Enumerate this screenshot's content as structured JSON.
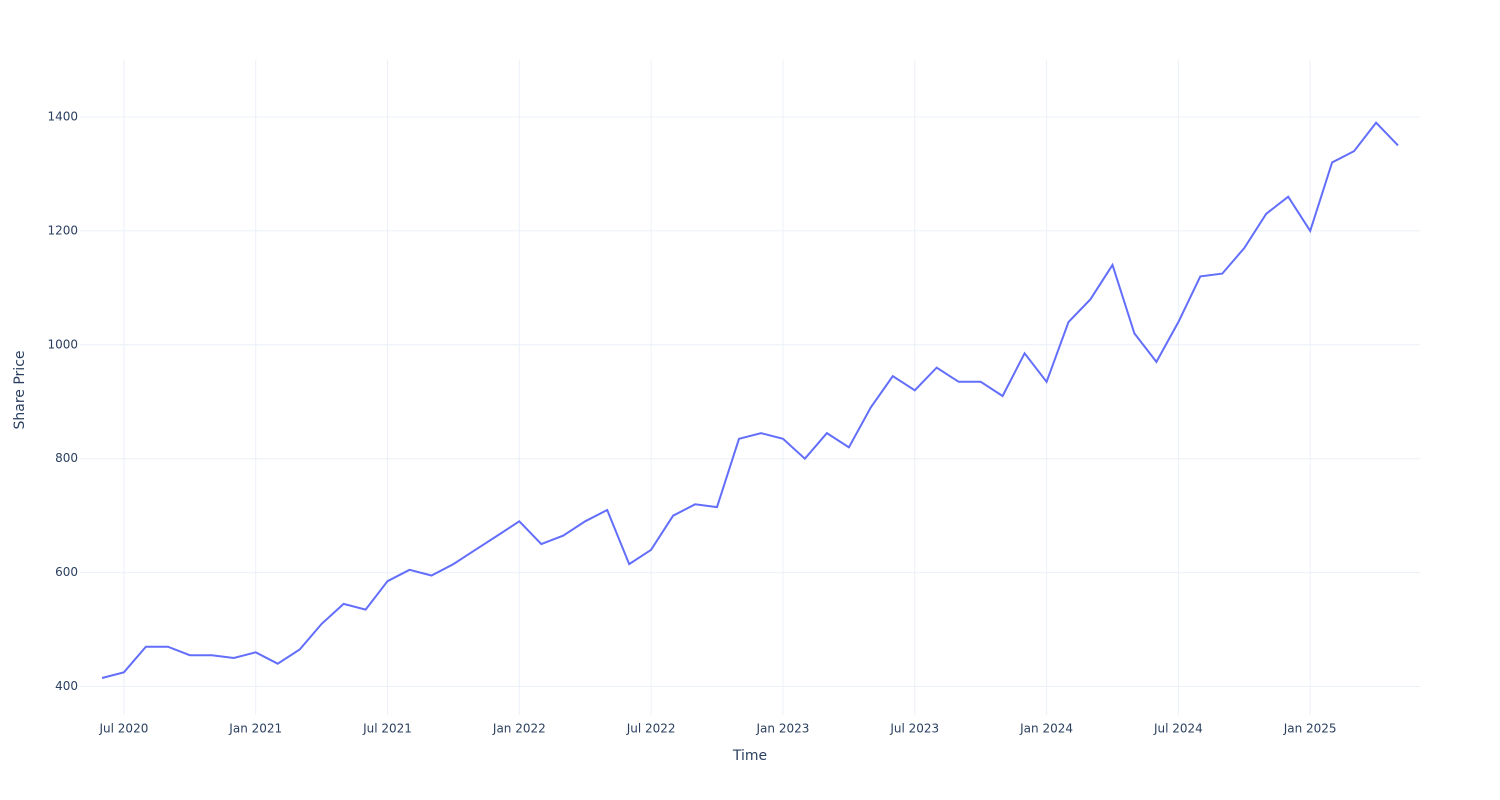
{
  "chart_data": {
    "type": "line",
    "x_label": "Time",
    "y_label": "Share Price",
    "x": [
      "2020-06",
      "2020-07",
      "2020-08",
      "2020-09",
      "2020-10",
      "2020-11",
      "2020-12",
      "2021-01",
      "2021-02",
      "2021-03",
      "2021-04",
      "2021-05",
      "2021-06",
      "2021-07",
      "2021-08",
      "2021-09",
      "2021-10",
      "2021-11",
      "2021-12",
      "2022-01",
      "2022-02",
      "2022-03",
      "2022-04",
      "2022-05",
      "2022-06",
      "2022-07",
      "2022-08",
      "2022-09",
      "2022-10",
      "2022-11",
      "2022-12",
      "2023-01",
      "2023-02",
      "2023-03",
      "2023-04",
      "2023-05",
      "2023-06",
      "2023-07",
      "2023-08",
      "2023-09",
      "2023-10",
      "2023-11",
      "2023-12",
      "2024-01",
      "2024-02",
      "2024-03",
      "2024-04",
      "2024-05",
      "2024-06",
      "2024-07",
      "2024-08",
      "2024-09",
      "2024-10",
      "2024-11",
      "2024-12",
      "2025-01",
      "2025-02",
      "2025-03",
      "2025-04",
      "2025-05"
    ],
    "series": [
      {
        "color": "#636efa",
        "values": [
          415,
          425,
          470,
          470,
          455,
          455,
          450,
          460,
          440,
          465,
          510,
          545,
          535,
          585,
          605,
          595,
          615,
          640,
          665,
          690,
          650,
          665,
          690,
          710,
          615,
          640,
          700,
          720,
          715,
          835,
          845,
          835,
          800,
          845,
          820,
          890,
          945,
          920,
          960,
          935,
          935,
          910,
          985,
          935,
          1040,
          1080,
          1140,
          1020,
          970,
          1040,
          1120,
          1125,
          1170,
          1230,
          1260,
          1200,
          1320,
          1340,
          1390,
          1350
        ]
      }
    ],
    "xlim": [
      "2020-05",
      "2025-06"
    ],
    "xticks": [
      {
        "value": "2020-07",
        "label": "Jul 2020"
      },
      {
        "value": "2021-01",
        "label": "Jan 2021"
      },
      {
        "value": "2021-07",
        "label": "Jul 2021"
      },
      {
        "value": "2022-01",
        "label": "Jan 2022"
      },
      {
        "value": "2022-07",
        "label": "Jul 2022"
      },
      {
        "value": "2023-01",
        "label": "Jan 2023"
      },
      {
        "value": "2023-07",
        "label": "Jul 2023"
      },
      {
        "value": "2024-01",
        "label": "Jan 2024"
      },
      {
        "value": "2024-07",
        "label": "Jul 2024"
      },
      {
        "value": "2025-01",
        "label": "Jan 2025"
      }
    ],
    "ylim": [
      350,
      1500
    ],
    "yticks": [
      400,
      600,
      800,
      1000,
      1200,
      1400
    ],
    "grid": true
  }
}
